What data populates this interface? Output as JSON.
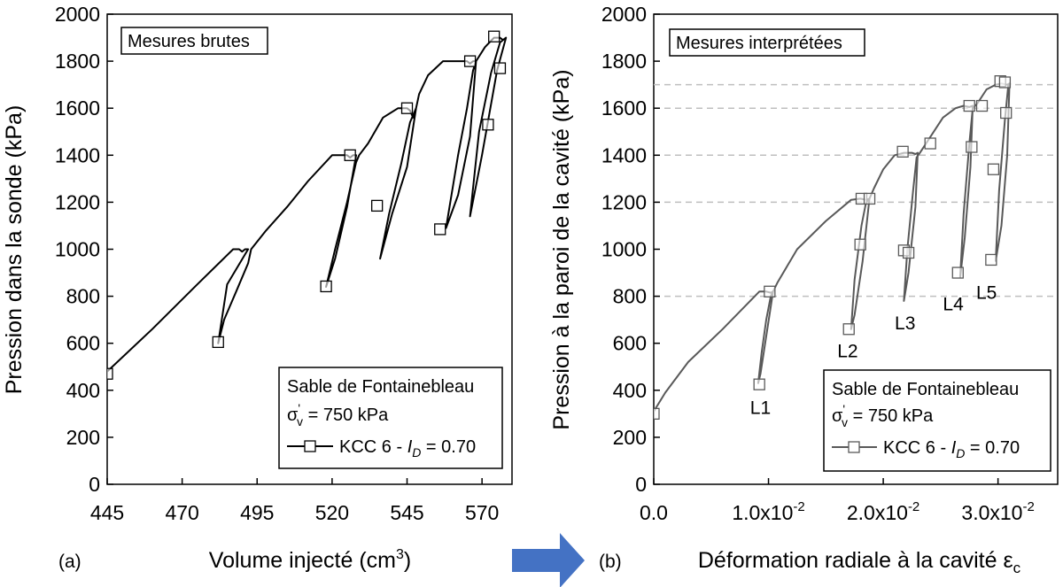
{
  "chart_data": [
    {
      "panel": "a",
      "type": "line",
      "panel_label": "(a)",
      "annotation": "Mesures brutes",
      "xlabel": "Volume injecté (cm",
      "xlabel_sup": "3",
      "xlabel_end": ")",
      "ylabel": "Pression dans la sonde (kPa)",
      "xlim": [
        445,
        580
      ],
      "ylim": [
        0,
        2000
      ],
      "xticks": [
        445,
        470,
        495,
        520,
        545,
        570
      ],
      "xtick_labels": [
        "445",
        "470",
        "495",
        "520",
        "545",
        "570"
      ],
      "yticks": [
        0,
        200,
        400,
        600,
        800,
        1000,
        1200,
        1400,
        1600,
        1800,
        2000
      ],
      "ytick_labels": [
        "0",
        "200",
        "400",
        "600",
        "800",
        "1000",
        "1200",
        "1400",
        "1600",
        "1800",
        "2000"
      ],
      "legend": {
        "line1": "Sable de Fontainebleau",
        "sigma_symbol": "σ",
        "sigma_sup": "'",
        "sigma_sub": "v",
        "sigma_rest": " = 750 kPa",
        "entry_prefix": "KCC 6 - ",
        "entry_var": "I",
        "entry_sub": "D",
        "entry_suffix": " = 0.70"
      },
      "series": [
        {
          "name": "KCC 6 - ID = 0.70",
          "color": "#000000",
          "x": [
            445,
            460,
            475,
            487,
            489,
            490,
            491,
            491.5,
            492,
            485,
            482,
            484,
            488,
            492,
            493,
            498,
            505,
            512,
            520,
            525,
            526,
            527,
            528,
            525,
            521,
            518,
            521,
            525,
            528,
            529,
            532,
            537,
            542,
            544,
            545,
            546,
            547,
            548,
            545,
            540,
            536,
            539,
            543,
            546,
            548,
            549,
            552,
            557,
            562,
            565,
            566,
            567,
            568,
            566,
            562,
            558,
            562,
            565,
            567,
            568,
            571,
            574,
            575,
            576,
            577,
            578,
            575,
            570,
            566,
            569,
            573,
            576,
            578
          ],
          "y": [
            480,
            660,
            850,
            1000,
            1000,
            990,
            1000,
            1000,
            1000,
            850,
            600,
            700,
            820,
            940,
            1000,
            1080,
            1180,
            1290,
            1400,
            1400,
            1390,
            1400,
            1400,
            1180,
            960,
            840,
            1000,
            1200,
            1370,
            1400,
            1450,
            1560,
            1600,
            1600,
            1600,
            1590,
            1560,
            1600,
            1350,
            1150,
            960,
            1150,
            1360,
            1540,
            1600,
            1660,
            1740,
            1800,
            1800,
            1800,
            1790,
            1800,
            1800,
            1480,
            1230,
            1090,
            1400,
            1600,
            1760,
            1800,
            1860,
            1900,
            1900,
            1900,
            1890,
            1900,
            1760,
            1400,
            1140,
            1500,
            1750,
            1880,
            1900
          ]
        }
      ],
      "markers": {
        "x": [
          445,
          482,
          518,
          526,
          535,
          545,
          556,
          566,
          572,
          574,
          576
        ],
        "y": [
          470,
          605,
          842,
          1400,
          1185,
          1600,
          1085,
          1800,
          1530,
          1905,
          1770
        ]
      }
    },
    {
      "panel": "b",
      "type": "line",
      "panel_label": "(b)",
      "annotation": "Mesures interprétées",
      "xlabel": "Déformation radiale à la cavité ε",
      "xlabel_sub": "c",
      "ylabel": "Pression à la paroi de la cavité (kPa)",
      "xlim": [
        0,
        0.0352
      ],
      "ylim": [
        0,
        2000
      ],
      "xticks": [
        0,
        0.01,
        0.02,
        0.03
      ],
      "xtick_labels": [
        {
          "main": "0.0",
          "sup": ""
        },
        {
          "main": "1.0x10",
          "sup": "-2"
        },
        {
          "main": "2.0x10",
          "sup": "-2"
        },
        {
          "main": "3.0x10",
          "sup": "-2"
        }
      ],
      "yticks": [
        0,
        200,
        400,
        600,
        800,
        1000,
        1200,
        1400,
        1600,
        1800,
        2000
      ],
      "ytick_labels": [
        "0",
        "200",
        "400",
        "600",
        "800",
        "1000",
        "1200",
        "1400",
        "1600",
        "1800",
        "2000"
      ],
      "reference_levels": [
        800,
        1200,
        1400,
        1600,
        1700
      ],
      "loop_labels": [
        {
          "text": "L1",
          "x": 0.0093,
          "y": 300
        },
        {
          "text": "L2",
          "x": 0.0169,
          "y": 540
        },
        {
          "text": "L3",
          "x": 0.0219,
          "y": 660
        },
        {
          "text": "L4",
          "x": 0.0261,
          "y": 740
        },
        {
          "text": "L5",
          "x": 0.029,
          "y": 790
        }
      ],
      "legend": {
        "line1": "Sable de Fontainebleau",
        "sigma_symbol": "σ",
        "sigma_sup": "'",
        "sigma_sub": "v",
        "sigma_rest": " = 750 kPa",
        "entry_prefix": "KCC 6 - ",
        "entry_var": "I",
        "entry_sub": "D",
        "entry_suffix": " = 0.70"
      },
      "series": [
        {
          "name": "KCC 6 - ID = 0.70",
          "color": "#595959",
          "x": [
            0,
            0.001,
            0.003,
            0.006,
            0.0092,
            0.0098,
            0.0102,
            0.0104,
            0.0098,
            0.0093,
            0.0091,
            0.0094,
            0.0098,
            0.0102,
            0.0104,
            0.0108,
            0.0125,
            0.015,
            0.0172,
            0.018,
            0.0185,
            0.0188,
            0.0182,
            0.0175,
            0.0172,
            0.0175,
            0.0181,
            0.0185,
            0.0188,
            0.0192,
            0.02,
            0.021,
            0.0218,
            0.0225,
            0.0228,
            0.023,
            0.0228,
            0.0222,
            0.0218,
            0.0221,
            0.0226,
            0.0229,
            0.0232,
            0.024,
            0.0252,
            0.0263,
            0.027,
            0.0275,
            0.0278,
            0.0276,
            0.0271,
            0.0267,
            0.027,
            0.0275,
            0.0278,
            0.0282,
            0.029,
            0.0298,
            0.0303,
            0.0308,
            0.031,
            0.0308,
            0.0303,
            0.0298,
            0.0301,
            0.0306,
            0.0309,
            0.0311
          ],
          "y": [
            310,
            390,
            520,
            660,
            820,
            820,
            815,
            820,
            630,
            470,
            430,
            560,
            700,
            800,
            820,
            860,
            1000,
            1120,
            1210,
            1215,
            1210,
            1215,
            950,
            720,
            660,
            870,
            1100,
            1200,
            1215,
            1260,
            1340,
            1400,
            1410,
            1410,
            1405,
            1410,
            1180,
            900,
            780,
            1000,
            1250,
            1390,
            1410,
            1470,
            1560,
            1600,
            1610,
            1605,
            1610,
            1350,
            1050,
            880,
            1150,
            1450,
            1600,
            1620,
            1680,
            1700,
            1705,
            1700,
            1705,
            1400,
            1100,
            950,
            1250,
            1550,
            1700,
            1705
          ]
        }
      ],
      "markers": {
        "x": [
          0,
          0.0092,
          0.0101,
          0.017,
          0.018,
          0.0181,
          0.0188,
          0.0218,
          0.0217,
          0.0222,
          0.0241,
          0.0265,
          0.0277,
          0.0275,
          0.0286,
          0.0294,
          0.0296,
          0.0302,
          0.0307,
          0.0306
        ],
        "y": [
          300,
          425,
          820,
          660,
          1020,
          1215,
          1215,
          995,
          1415,
          985,
          1450,
          900,
          1435,
          1610,
          1610,
          955,
          1340,
          1715,
          1580,
          1710
        ]
      }
    }
  ],
  "arrow": {
    "color": "#4472C4"
  }
}
